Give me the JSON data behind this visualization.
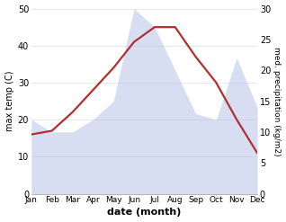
{
  "months": [
    "Jan",
    "Feb",
    "Mar",
    "Apr",
    "May",
    "Jun",
    "Jul",
    "Aug",
    "Sep",
    "Oct",
    "Nov",
    "Dec"
  ],
  "temp": [
    16,
    17,
    22,
    28,
    34,
    41,
    45,
    45,
    37,
    30,
    20,
    11
  ],
  "precip": [
    12,
    10,
    10,
    12,
    15,
    30,
    27,
    20,
    13,
    12,
    22,
    14
  ],
  "temp_color": "#b03030",
  "precip_fill_color": "#b8c4e8",
  "precip_fill_alpha": 0.55,
  "temp_ylim": [
    0,
    50
  ],
  "precip_ylim": [
    0,
    30
  ],
  "temp_yticks": [
    0,
    10,
    20,
    30,
    40,
    50
  ],
  "precip_yticks": [
    0,
    5,
    10,
    15,
    20,
    25,
    30
  ],
  "xlabel": "date (month)",
  "ylabel_left": "max temp (C)",
  "ylabel_right": "med. precipitation (kg/m2)",
  "bg_color": "#ffffff",
  "line_width": 1.6,
  "grid_color": "#dddddd"
}
